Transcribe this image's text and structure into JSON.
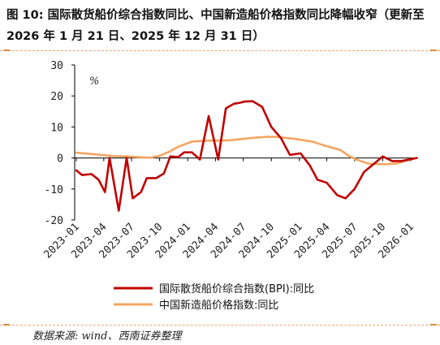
{
  "title": "图 10: 国际散货船价综合指数同比、中国新造船价格指数同比降幅收窄（更新至 2026 年 1 月 21 日、2025 年 12 月 31 日）",
  "source": "数据来源: wind、西南证券整理",
  "chart_data": {
    "type": "line",
    "ylabel": "%",
    "ylim": [
      -20,
      30
    ],
    "yticks": [
      30,
      20,
      10,
      0,
      -10,
      -20
    ],
    "xtick_labels": [
      "2023-01",
      "2023-04",
      "2023-07",
      "2023-10",
      "2024-01",
      "2024-04",
      "2024-07",
      "2024-10",
      "2025-01",
      "2025-04",
      "2025-07",
      "2025-10",
      "2026-01"
    ],
    "grid": false,
    "legend_position": "bottom",
    "series": [
      {
        "name": "国际散货船价综合指数(BPI):同比",
        "color": "#c00000",
        "x": [
          "2023-01-01",
          "2023-01-20",
          "2023-02-20",
          "2023-03-15",
          "2023-04-05",
          "2023-04-20",
          "2023-05-20",
          "2023-06-15",
          "2023-07-05",
          "2023-08-01",
          "2023-08-20",
          "2023-09-20",
          "2023-10-15",
          "2023-11-05",
          "2023-12-01",
          "2023-12-20",
          "2024-01-15",
          "2024-02-10",
          "2024-03-10",
          "2024-04-10",
          "2024-05-05",
          "2024-06-01",
          "2024-06-20",
          "2024-07-05",
          "2024-08-01",
          "2024-09-01",
          "2024-10-01",
          "2024-11-01",
          "2024-12-01",
          "2025-01-05",
          "2025-02-05",
          "2025-03-01",
          "2025-04-01",
          "2025-05-05",
          "2025-06-01",
          "2025-07-01",
          "2025-08-01",
          "2025-09-01",
          "2025-10-01",
          "2025-11-01",
          "2025-12-01",
          "2026-01-21"
        ],
        "y": [
          -4,
          -5.5,
          -5.2,
          -7,
          -11,
          0,
          -17,
          0,
          -13,
          -11,
          -6.5,
          -6.5,
          -5,
          0.5,
          0.3,
          1.8,
          1.8,
          -0.5,
          13.5,
          -0.5,
          16,
          17.5,
          17.8,
          18.2,
          18.3,
          16.5,
          10,
          6.5,
          1,
          1.5,
          -2.5,
          -7,
          -8,
          -12,
          -13,
          -10,
          -4.5,
          -2,
          0.5,
          -1,
          -1,
          0
        ]
      },
      {
        "name": "中国新造船价格指数:同比",
        "color": "#f4a460",
        "x": [
          "2023-01-01",
          "2023-03-01",
          "2023-05-01",
          "2023-06-15",
          "2023-08-01",
          "2023-09-01",
          "2023-10-01",
          "2023-11-01",
          "2023-12-01",
          "2024-01-15",
          "2024-02-15",
          "2024-03-15",
          "2024-04-15",
          "2024-05-15",
          "2024-06-15",
          "2024-07-15",
          "2024-08-15",
          "2024-09-15",
          "2024-10-15",
          "2024-11-15",
          "2024-12-15",
          "2025-01-15",
          "2025-02-15",
          "2025-03-15",
          "2025-04-15",
          "2025-05-15",
          "2025-06-15",
          "2025-07-15",
          "2025-08-15",
          "2025-09-15",
          "2025-10-15",
          "2025-11-15",
          "2025-12-31"
        ],
        "y": [
          1.7,
          1.2,
          0.6,
          0.5,
          0.2,
          0.1,
          0.7,
          2.0,
          3.6,
          5.3,
          5.5,
          5.6,
          5.6,
          5.7,
          6.0,
          6.3,
          6.6,
          6.8,
          6.8,
          6.5,
          6.2,
          5.7,
          5.2,
          4.3,
          3.4,
          2.6,
          0.5,
          -0.8,
          -1.8,
          -2.0,
          -2.0,
          -1.8,
          -0.5
        ]
      }
    ]
  }
}
